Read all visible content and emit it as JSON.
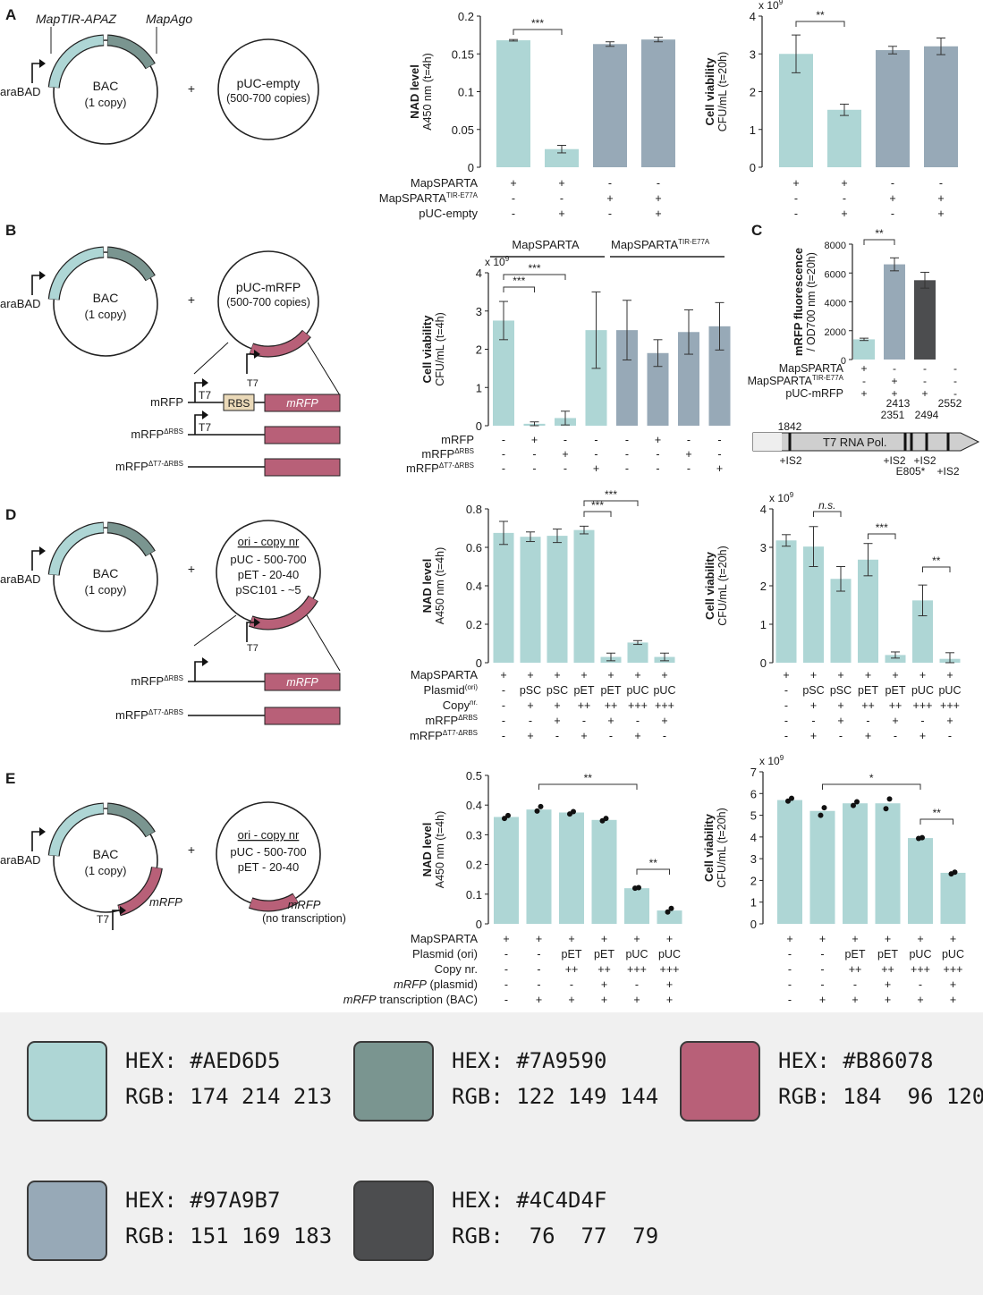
{
  "colors": {
    "teal": "#AED6D5",
    "dark_teal": "#7A9590",
    "red": "#B86078",
    "blue_gray": "#97A9B7",
    "dark_gray": "#4C4D4F"
  },
  "panels": {
    "A": {
      "letter": "A",
      "diagram": {
        "gene1": "MapTIR-APAZ",
        "gene2": "MapAgo",
        "promoter": "araBAD",
        "bac_name": "BAC",
        "bac_copy": "(1 copy)",
        "plus": "+",
        "plasmid_name": "pUC-empty",
        "plasmid_copy": "(500-700 copies)"
      },
      "row_labels": [
        "MapSPARTA",
        "MapSPARTA TIR-E77A",
        "pUC-empty"
      ]
    },
    "B": {
      "letter": "B",
      "diagram": {
        "promoter": "araBAD",
        "bac_name": "BAC",
        "bac_copy": "(1 copy)",
        "plus": "+",
        "plasmid_name": "pUC-mRFP",
        "plasmid_copy": "(500-700 copies)",
        "t7": "T7",
        "rbs": "RBS",
        "constructs": [
          {
            "label": "mRFP",
            "gene": "mRFP"
          },
          {
            "label": "mRFP ΔRBS",
            "gene": ""
          },
          {
            "label": "mRFP ΔT7-ΔRBS",
            "gene": ""
          }
        ]
      },
      "group_labels": [
        "MapSPARTA",
        "MapSPARTA TIR-E77A"
      ],
      "row_labels": [
        "mRFP",
        "mRFP ΔRBS",
        "mRFP ΔT7-ΔRBS"
      ]
    },
    "C": {
      "letter": "C",
      "row_labels": [
        "MapSPARTA",
        "MapSPARTA TIR-E77A",
        "pUC-mRFP"
      ],
      "t7_map": {
        "label": "T7 RNA Pol.",
        "positions": [
          "1842",
          "2351",
          "2413",
          "2494",
          "2552"
        ],
        "notes": [
          "+IS2",
          "+IS2",
          "+IS2",
          "E805*",
          "+IS2"
        ]
      }
    },
    "D": {
      "letter": "D",
      "diagram": {
        "promoter": "araBAD",
        "bac_name": "BAC",
        "bac_copy": "(1 copy)",
        "plus": "+",
        "ori_title": "ori - copy nr",
        "ori_lines": [
          "pUC - 500-700",
          "pET - 20-40",
          "pSC101 - ~5"
        ],
        "t7": "T7",
        "constructs": [
          {
            "label": "mRFP ΔRBS",
            "gene": "mRFP"
          },
          {
            "label": "mRFP ΔT7-ΔRBS",
            "gene": ""
          }
        ]
      },
      "row_labels": [
        "MapSPARTA",
        "Plasmid (ori)",
        "Copy nr.",
        "mRFP ΔRBS",
        "mRFP ΔT7-ΔRBS"
      ]
    },
    "E": {
      "letter": "E",
      "diagram": {
        "promoter": "araBAD",
        "bac_name": "BAC",
        "bac_copy": "(1 copy)",
        "plus": "+",
        "ori_title": "ori - copy nr",
        "ori_lines": [
          "pUC - 500-700",
          "pET - 20-40"
        ],
        "t7": "T7",
        "gene_bac": "mRFP",
        "gene_plasmid": "mRFP",
        "no_tx": "(no transcription)"
      },
      "row_labels": [
        "MapSPARTA",
        "Plasmid (ori)",
        "Copy nr.",
        "mRFP (plasmid)",
        "mRFP transcription (BAC)"
      ]
    }
  },
  "chart_data": [
    {
      "id": "A-NAD",
      "type": "bar",
      "ylabel": "NAD level",
      "ylabel2": "A450 nm (t=4h)",
      "ylim": [
        0,
        0.2
      ],
      "yticks": [
        0,
        0.05,
        0.1,
        0.15,
        0.2
      ],
      "ytick_labels": [
        "0",
        "0.05",
        "0.1",
        "0.15",
        "0.2"
      ],
      "values": [
        0.168,
        0.024,
        0.163,
        0.169
      ],
      "errors": [
        0.001,
        0.005,
        0.003,
        0.003
      ],
      "colors": [
        "teal",
        "teal",
        "blue_gray",
        "blue_gray"
      ],
      "significance": [
        {
          "a": 0,
          "b": 1,
          "label": "***"
        }
      ],
      "table": [
        [
          "+",
          "+",
          "-",
          "-"
        ],
        [
          "-",
          "-",
          "+",
          "+"
        ],
        [
          "-",
          "+",
          "-",
          "+"
        ]
      ]
    },
    {
      "id": "A-CFU",
      "type": "bar",
      "ylabel": "Cell viability",
      "ylabel2": "CFU/mL (t=20h)",
      "multiplier": "x 10^9",
      "ylim": [
        0,
        4
      ],
      "yticks": [
        0,
        1,
        2,
        3,
        4
      ],
      "ytick_labels": [
        "0",
        "1",
        "2",
        "3",
        "4"
      ],
      "values": [
        3.0,
        1.52,
        3.1,
        3.2
      ],
      "errors": [
        0.5,
        0.15,
        0.1,
        0.22
      ],
      "colors": [
        "teal",
        "teal",
        "blue_gray",
        "blue_gray"
      ],
      "significance": [
        {
          "a": 0,
          "b": 1,
          "label": "**"
        }
      ],
      "table": [
        [
          "+",
          "+",
          "-",
          "-"
        ],
        [
          "-",
          "-",
          "+",
          "+"
        ],
        [
          "-",
          "+",
          "-",
          "+"
        ]
      ]
    },
    {
      "id": "B-CFU",
      "type": "bar",
      "ylabel": "Cell viability",
      "ylabel2": "CFU/mL (t=4h)",
      "multiplier": "x 10^9",
      "ylim": [
        0,
        4
      ],
      "yticks": [
        0,
        1,
        2,
        3,
        4
      ],
      "ytick_labels": [
        "0",
        "1",
        "2",
        "3",
        "4"
      ],
      "values": [
        2.75,
        0.05,
        0.2,
        2.5,
        2.5,
        1.9,
        2.45,
        2.6
      ],
      "errors": [
        0.5,
        0.05,
        0.18,
        1.0,
        0.78,
        0.35,
        0.58,
        0.62
      ],
      "colors": [
        "teal",
        "teal",
        "teal",
        "teal",
        "blue_gray",
        "blue_gray",
        "blue_gray",
        "blue_gray"
      ],
      "significance": [
        {
          "a": 0,
          "b": 1,
          "label": "***"
        },
        {
          "a": 0,
          "b": 2,
          "label": "***"
        }
      ],
      "table": [
        [
          "-",
          "+",
          "-",
          "-",
          "-",
          "+",
          "-",
          "-"
        ],
        [
          "-",
          "-",
          "+",
          "-",
          "-",
          "-",
          "+",
          "-"
        ],
        [
          "-",
          "-",
          "-",
          "+",
          "-",
          "-",
          "-",
          "+"
        ]
      ]
    },
    {
      "id": "C-RFP",
      "type": "bar",
      "ylabel": "mRFP fluorescence",
      "ylabel2": "/ OD700 nm (t=20h)",
      "ylim": [
        0,
        8000
      ],
      "yticks": [
        0,
        2000,
        4000,
        6000,
        8000
      ],
      "ytick_labels": [
        "0",
        "2000",
        "4000",
        "6000",
        "8000"
      ],
      "values": [
        1400,
        6600,
        5500,
        0
      ],
      "errors": [
        80,
        450,
        550,
        0
      ],
      "colors": [
        "teal",
        "blue_gray",
        "dark_gray",
        "dark_gray"
      ],
      "significance": [
        {
          "a": 0,
          "b": 1,
          "label": "**"
        }
      ],
      "table": [
        [
          "+",
          "-",
          "-",
          "-"
        ],
        [
          "-",
          "+",
          "-",
          "-"
        ],
        [
          "+",
          "+",
          "+",
          "-"
        ]
      ]
    },
    {
      "id": "D-NAD",
      "type": "bar",
      "ylabel": "NAD level",
      "ylabel2": "A450 nm (t=4h)",
      "ylim": [
        0,
        0.8
      ],
      "yticks": [
        0,
        0.2,
        0.4,
        0.6,
        0.8
      ],
      "ytick_labels": [
        "0",
        "0.2",
        "0.4",
        "0.6",
        "0.8"
      ],
      "values": [
        0.675,
        0.655,
        0.66,
        0.69,
        0.03,
        0.105,
        0.03
      ],
      "errors": [
        0.06,
        0.025,
        0.035,
        0.02,
        0.02,
        0.01,
        0.02
      ],
      "colors": [
        "teal",
        "teal",
        "teal",
        "teal",
        "teal",
        "teal",
        "teal"
      ],
      "significance": [
        {
          "a": 3,
          "b": 4,
          "label": "***"
        },
        {
          "a": 3,
          "b": 5,
          "label": "***"
        }
      ],
      "table": [
        [
          "+",
          "+",
          "+",
          "+",
          "+",
          "+",
          "+"
        ],
        [
          "-",
          "pSC",
          "pSC",
          "pET",
          "pET",
          "pUC",
          "pUC"
        ],
        [
          "-",
          "+",
          "+",
          "++",
          "++",
          "+++",
          "+++"
        ],
        [
          "-",
          "-",
          "+",
          "-",
          "+",
          "-",
          "+"
        ],
        [
          "-",
          "+",
          "-",
          "+",
          "-",
          "+",
          "-"
        ]
      ]
    },
    {
      "id": "D-CFU",
      "type": "bar",
      "ylabel": "Cell viability",
      "ylabel2": "CFU/mL (t=20h)",
      "multiplier": "x 10^9",
      "ylim": [
        0,
        4
      ],
      "yticks": [
        0,
        1,
        2,
        3,
        4
      ],
      "ytick_labels": [
        "0",
        "1",
        "2",
        "3",
        "4"
      ],
      "values": [
        3.18,
        3.02,
        2.18,
        2.68,
        0.2,
        1.62,
        0.1
      ],
      "errors": [
        0.15,
        0.52,
        0.32,
        0.42,
        0.08,
        0.4,
        0.16
      ],
      "colors": [
        "teal",
        "teal",
        "teal",
        "teal",
        "teal",
        "teal",
        "teal"
      ],
      "significance": [
        {
          "a": 1,
          "b": 2,
          "label": "n.s."
        },
        {
          "a": 3,
          "b": 4,
          "label": "***"
        },
        {
          "a": 5,
          "b": 6,
          "label": "**"
        }
      ],
      "table": [
        [
          "+",
          "+",
          "+",
          "+",
          "+",
          "+",
          "+"
        ],
        [
          "-",
          "pSC",
          "pSC",
          "pET",
          "pET",
          "pUC",
          "pUC"
        ],
        [
          "-",
          "+",
          "+",
          "++",
          "++",
          "+++",
          "+++"
        ],
        [
          "-",
          "-",
          "+",
          "-",
          "+",
          "-",
          "+"
        ],
        [
          "-",
          "+",
          "-",
          "+",
          "-",
          "+",
          "-"
        ]
      ]
    },
    {
      "id": "E-NAD",
      "type": "bar",
      "ylabel": "NAD level",
      "ylabel2": "A450 nm (t=4h)",
      "ylim": [
        0,
        0.5
      ],
      "yticks": [
        0,
        0.1,
        0.2,
        0.3,
        0.4,
        0.5
      ],
      "ytick_labels": [
        "0",
        "0.1",
        "0.2",
        "0.3",
        "0.4",
        "0.5"
      ],
      "values": [
        0.36,
        0.385,
        0.375,
        0.35,
        0.12,
        0.045
      ],
      "colors": [
        "teal",
        "teal",
        "teal",
        "teal",
        "teal",
        "teal"
      ],
      "points": [
        [
          0.355,
          0.365
        ],
        [
          0.38,
          0.395
        ],
        [
          0.37,
          0.378
        ],
        [
          0.347,
          0.355
        ],
        [
          0.12,
          0.122
        ],
        [
          0.04,
          0.052
        ]
      ],
      "significance": [
        {
          "a": 1,
          "b": 4,
          "label": "**"
        },
        {
          "a": 4,
          "b": 5,
          "label": "**"
        }
      ],
      "table": [
        [
          "+",
          "+",
          "+",
          "+",
          "+",
          "+"
        ],
        [
          "-",
          "-",
          "pET",
          "pET",
          "pUC",
          "pUC"
        ],
        [
          "-",
          "-",
          "++",
          "++",
          "+++",
          "+++"
        ],
        [
          "-",
          "-",
          "-",
          "+",
          "-",
          "+"
        ],
        [
          "-",
          "+",
          "+",
          "+",
          "+",
          "+"
        ]
      ]
    },
    {
      "id": "E-CFU",
      "type": "bar",
      "ylabel": "Cell viability",
      "ylabel2": "CFU/mL (t=20h)",
      "multiplier": "x 10^9",
      "ylim": [
        0,
        7
      ],
      "yticks": [
        0,
        1,
        2,
        3,
        4,
        5,
        6,
        7
      ],
      "ytick_labels": [
        "0",
        "1",
        "2",
        "3",
        "4",
        "5",
        "6",
        "7"
      ],
      "values": [
        5.7,
        5.2,
        5.55,
        5.55,
        3.95,
        2.35
      ],
      "colors": [
        "teal",
        "teal",
        "teal",
        "teal",
        "teal",
        "teal"
      ],
      "points": [
        [
          5.65,
          5.78
        ],
        [
          5.0,
          5.35
        ],
        [
          5.45,
          5.62
        ],
        [
          5.3,
          5.75
        ],
        [
          3.93,
          3.97
        ],
        [
          2.3,
          2.38
        ]
      ],
      "significance": [
        {
          "a": 1,
          "b": 4,
          "label": "*"
        },
        {
          "a": 4,
          "b": 5,
          "label": "**"
        }
      ],
      "table": [
        [
          "+",
          "+",
          "+",
          "+",
          "+",
          "+"
        ],
        [
          "-",
          "-",
          "pET",
          "pET",
          "pUC",
          "pUC"
        ],
        [
          "-",
          "-",
          "++",
          "++",
          "+++",
          "+++"
        ],
        [
          "-",
          "-",
          "-",
          "+",
          "-",
          "+"
        ],
        [
          "-",
          "+",
          "+",
          "+",
          "+",
          "+"
        ]
      ]
    }
  ],
  "palette": [
    {
      "hex": "HEX: #AED6D5",
      "rgb": "RGB: 174 214 213",
      "color": "#AED6D5"
    },
    {
      "hex": "HEX: #7A9590",
      "rgb": "RGB: 122 149 144",
      "color": "#7A9590"
    },
    {
      "hex": "HEX: #B86078",
      "rgb": "RGB: 184  96 120",
      "color": "#B86078"
    },
    {
      "hex": "HEX: #97A9B7",
      "rgb": "RGB: 151 169 183",
      "color": "#97A9B7"
    },
    {
      "hex": "HEX: #4C4D4F",
      "rgb": "RGB:  76  77  79",
      "color": "#4C4D4F"
    }
  ]
}
